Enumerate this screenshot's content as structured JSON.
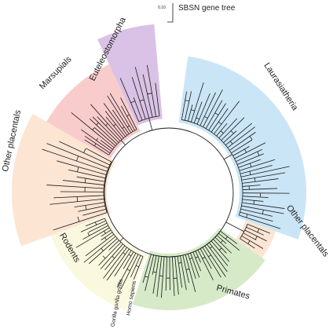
{
  "title": "SBSN gene tree",
  "scale_bar": {
    "label": "0.10"
  },
  "clades": [
    {
      "id": "euteleostomorpha",
      "label": "Euteleostomorpha",
      "color": "#b98fd0",
      "leaves": 7
    },
    {
      "id": "marsupials",
      "label": "Marsupials",
      "color": "#f4a3a3",
      "leaves": 18
    },
    {
      "id": "other-placentals-left",
      "label": "Other placentals",
      "color": "#f9cfae",
      "leaves": 16
    },
    {
      "id": "rodents",
      "label": "Rodents",
      "color": "#f6f3c3",
      "leaves": 22
    },
    {
      "id": "primates",
      "label": "Primates",
      "color": "#b5d99a",
      "leaves": 30
    },
    {
      "id": "other-placentals-right",
      "label": "Other placentals",
      "color": "#f9cfae",
      "leaves": 6
    },
    {
      "id": "laurasiatheria",
      "label": "Laurasiatheria",
      "color": "#9fcfee",
      "leaves": 40
    }
  ],
  "species_labels": [
    {
      "id": "gorilla",
      "text": "Gorilla gorilla gorilla"
    },
    {
      "id": "homo",
      "text": "Homo sapiens"
    }
  ]
}
